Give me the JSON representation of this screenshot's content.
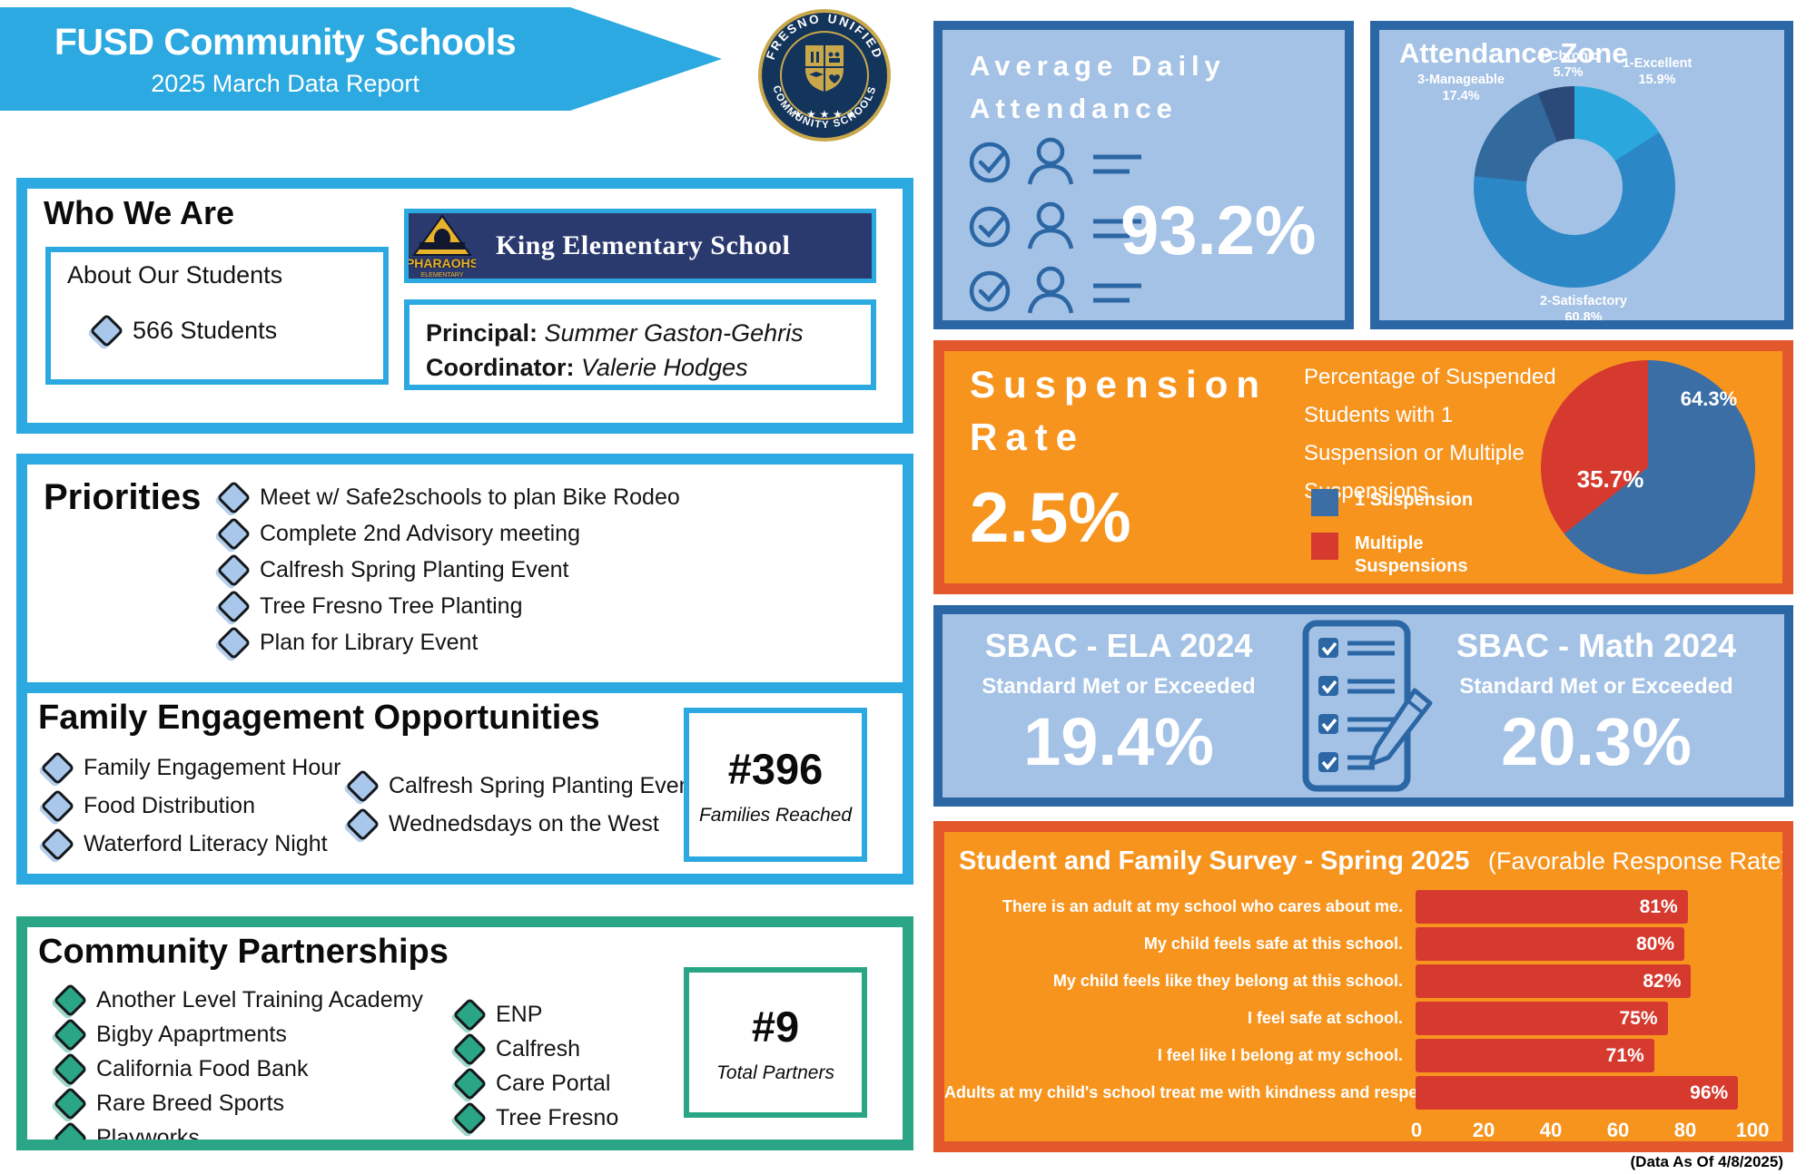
{
  "header": {
    "title": "FUSD Community Schools",
    "subtitle": "2025 March Data Report",
    "logo_top": "FRESNO UNIFIED",
    "logo_bottom": "COMMUNITY SCHOOLS"
  },
  "who_we_are": {
    "heading": "Who We Are",
    "students_box_title": "About Our Students",
    "students_count": "566 Students",
    "school_banner": {
      "mascot": "PHARAOHS",
      "mascot_sub": "ELEMENTARY",
      "school_name": "King Elementary School"
    },
    "principal_label": "Principal:",
    "principal_name": "Summer Gaston-Gehris",
    "coordinator_label": "Coordinator:",
    "coordinator_name": "Valerie Hodges"
  },
  "priorities": {
    "heading": "Priorities",
    "items": [
      "Meet w/ Safe2schools to plan Bike Rodeo",
      "Complete 2nd Advisory meeting",
      "Calfresh Spring Planting Event",
      "Tree Fresno Tree Planting",
      "Plan for Library Event"
    ]
  },
  "family_engagement": {
    "heading": "Family Engagement Opportunities",
    "col1": [
      "Family Engagement Hour",
      "Food Distribution",
      "Waterford Literacy Night"
    ],
    "col2": [
      "Calfresh Spring Planting Event",
      "Wednedsdays on the West"
    ],
    "stat_value": "#396",
    "stat_label": "Families Reached"
  },
  "community_partnerships": {
    "heading": "Community Partnerships",
    "col1": [
      "Another Level Training Academy",
      "Bigby Apaprtments",
      "California Food Bank",
      "Rare Breed Sports",
      "Playworks"
    ],
    "col2": [
      "ENP",
      "Calfresh",
      "Care Portal",
      "Tree Fresno"
    ],
    "stat_value": "#9",
    "stat_label": "Total Partners"
  },
  "attendance": {
    "title_line1": "Average Daily",
    "title_line2": "Attendance",
    "value": "93.2%"
  },
  "suspension": {
    "title_line1": "Suspension",
    "title_line2": "Rate",
    "value": "2.5%",
    "description": "Percentage of Suspended Students with 1 Suspension or Multiple Suspensions.",
    "legend": [
      {
        "label": "1 Suspension",
        "color": "#3A6EA5"
      },
      {
        "label": "Multiple Suspensions",
        "color": "#D63A2F"
      }
    ]
  },
  "sbac": {
    "ela_title": "SBAC - ELA 2024",
    "ela_sub": "Standard Met or Exceeded",
    "ela_value": "19.4%",
    "math_title": "SBAC - Math 2024",
    "math_sub": "Standard Met or Exceeded",
    "math_value": "20.3%"
  },
  "survey": {
    "title": "Student and Family Survey - Spring 2025",
    "subtitle": "(Favorable Response Rate)",
    "footnote": "(Data As Of 4/8/2025)"
  },
  "chart_data": [
    {
      "id": "attendance_zone",
      "type": "pie",
      "donut": true,
      "title": "Attendance Zone",
      "labels": [
        "1-Excellent",
        "2-Satisfactory",
        "3-Manageable",
        "4-Chronic"
      ],
      "values": [
        15.9,
        60.8,
        17.4,
        5.7
      ],
      "colors": [
        "#2AA7DD",
        "#2C87C6",
        "#336A9E",
        "#2B4A7A"
      ],
      "start_angle": "top-clockwise"
    },
    {
      "id": "suspension_split",
      "type": "pie",
      "labels": [
        "1 Suspension",
        "Multiple Suspensions"
      ],
      "values": [
        64.3,
        35.7
      ],
      "colors": [
        "#3A6EA5",
        "#D63A2F"
      ],
      "start_angle": "top-clockwise"
    },
    {
      "id": "survey_favorable",
      "type": "bar",
      "orientation": "horizontal",
      "title": "Student and Family Survey - Spring 2025 (Favorable Response Rate)",
      "categories": [
        "There is an adult at my school who cares about me.",
        "My child feels safe at this school.",
        "My child feels like they belong at this school.",
        "I feel safe at school.",
        "I feel like I belong at my school.",
        "Adults at my child's school treat me with kindness and respect."
      ],
      "values": [
        81,
        80,
        82,
        75,
        71,
        96
      ],
      "xlim": [
        0,
        100
      ],
      "xticks": [
        0,
        20,
        40,
        60,
        80,
        100
      ],
      "bar_color": "#D63A2F"
    }
  ],
  "colors": {
    "sky_blue": "#2BA9E0",
    "green": "#2AA585",
    "panel_light_blue": "#A4C2E5",
    "panel_blue_border": "#2C67A5",
    "orange": "#F7941E",
    "orange_border": "#E2572B",
    "red": "#D63A2F",
    "navy_banner": "#2B3A6E",
    "gold": "#C9A84C"
  }
}
